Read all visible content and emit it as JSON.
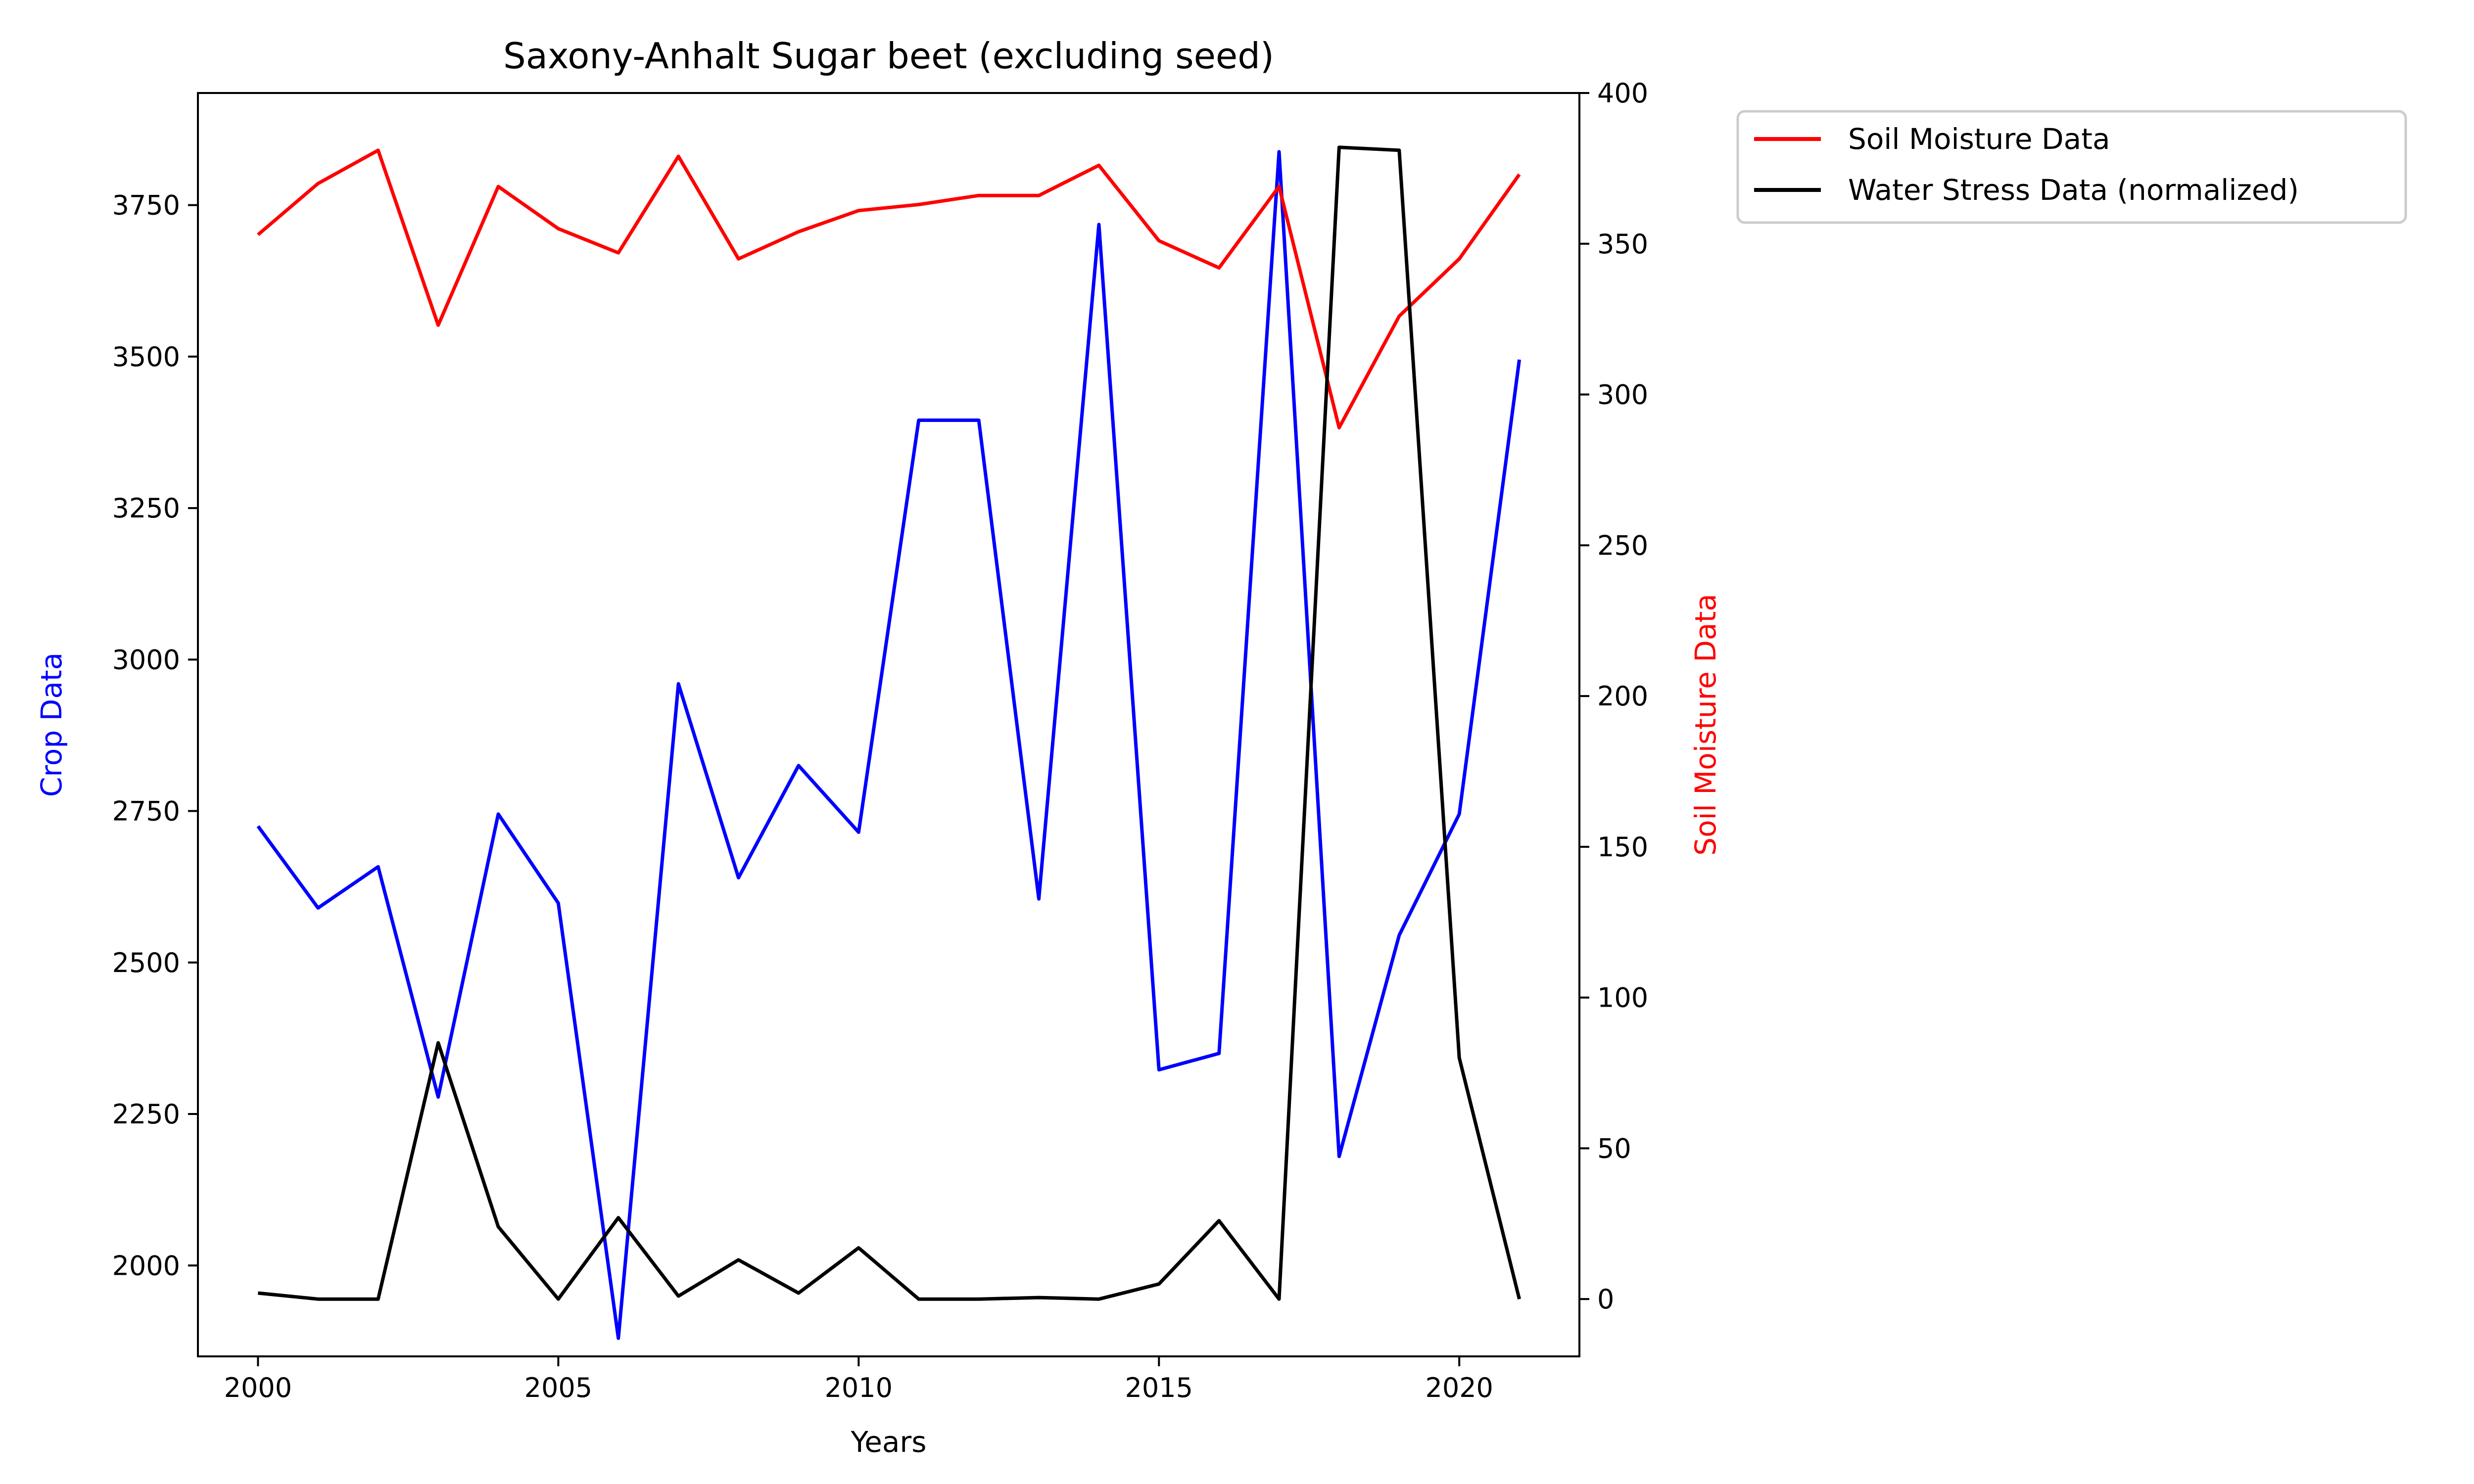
{
  "chart_data": {
    "type": "line",
    "title": "Saxony-Anhalt Sugar beet (excluding seed)",
    "xlabel": "Years",
    "ylabel_left": "Crop Data",
    "ylabel_right": "Soil Moisture Data",
    "xlim": [
      1999,
      2022
    ],
    "ylim_left": [
      1850,
      3935
    ],
    "ylim_right": [
      -19,
      400
    ],
    "x_ticks": [
      2000,
      2005,
      2010,
      2015,
      2020
    ],
    "y_ticks_left": [
      2000,
      2250,
      2500,
      2750,
      3000,
      3250,
      3500,
      3750
    ],
    "y_ticks_right": [
      0,
      50,
      100,
      150,
      200,
      250,
      300,
      350,
      400
    ],
    "legend_position": "outside-top-right",
    "grid": false,
    "x": [
      2000,
      2001,
      2002,
      2003,
      2004,
      2005,
      2006,
      2007,
      2008,
      2009,
      2010,
      2011,
      2012,
      2013,
      2014,
      2015,
      2016,
      2017,
      2018,
      2019,
      2020,
      2021
    ],
    "series": [
      {
        "name": "",
        "axis": "left",
        "color": "#0000ff",
        "values": [
          2725,
          2590,
          2658,
          2278,
          2745,
          2598,
          1880,
          2960,
          2640,
          2825,
          2715,
          3395,
          3395,
          2605,
          3718,
          2323,
          2350,
          3838,
          2180,
          2545,
          2745,
          3495
        ]
      },
      {
        "name": "Soil Moisture Data",
        "axis": "right",
        "color": "#ff0000",
        "values": [
          353,
          370,
          381,
          323,
          369,
          355,
          347,
          379,
          345,
          354,
          361,
          363,
          366,
          366,
          376,
          351,
          342,
          369,
          289,
          326,
          345,
          373
        ]
      },
      {
        "name": "Water Stress Data (normalized)",
        "axis": "right",
        "color": "#000000",
        "values": [
          2,
          0,
          0,
          85,
          24,
          0,
          27,
          1,
          13,
          2,
          17,
          0,
          0,
          0.5,
          0,
          5,
          26,
          0,
          382,
          381,
          80,
          0
        ]
      }
    ]
  }
}
